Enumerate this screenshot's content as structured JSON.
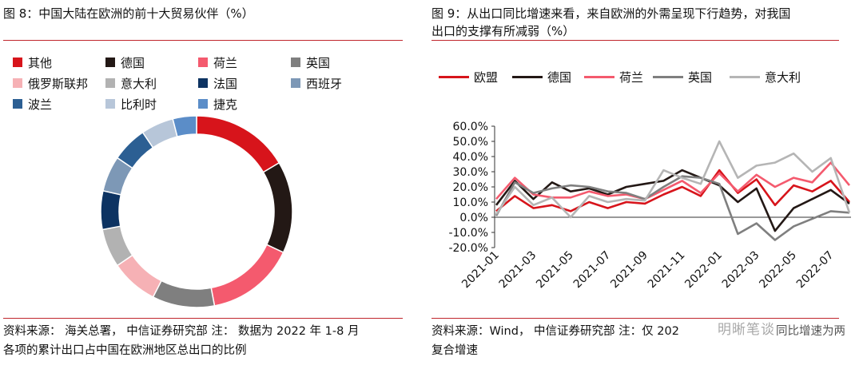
{
  "left": {
    "title": "图 8：中国大陆在欧洲的前十大贸易伙伴（%）",
    "source": "资料来源：  海关总署， 中信证券研究部  注： 数据为 2022 年 1-8 月",
    "source2": "各项的累计出口占中国在欧洲地区总出口的比例",
    "legend": [
      {
        "label": "其他",
        "color": "#d7141b"
      },
      {
        "label": "德国",
        "color": "#231815"
      },
      {
        "label": "荷兰",
        "color": "#f45a6e"
      },
      {
        "label": "英国",
        "color": "#7f7f7f"
      },
      {
        "label": "俄罗斯联邦",
        "color": "#f6b1b5"
      },
      {
        "label": "意大利",
        "color": "#b2b2b2"
      },
      {
        "label": "法国",
        "color": "#0d3362"
      },
      {
        "label": "西班牙",
        "color": "#7d98b6"
      },
      {
        "label": "波兰",
        "color": "#2c5f93"
      },
      {
        "label": "比利时",
        "color": "#b7c6d9"
      },
      {
        "label": "捷克",
        "color": "#5b8dc8"
      }
    ],
    "chart_data": {
      "type": "pie",
      "categories": [
        "其他",
        "德国",
        "荷兰",
        "英国",
        "俄罗斯联邦",
        "意大利",
        "法国",
        "西班牙",
        "波兰",
        "比利时",
        "捷克"
      ],
      "values": [
        16.5,
        15.5,
        15.0,
        10.5,
        8.0,
        6.5,
        6.5,
        6.0,
        6.0,
        5.5,
        4.0
      ]
    }
  },
  "right": {
    "title": "图 9：从出口同比增速来看，来自欧洲的外需呈现下行趋势，对我国\n出口的支撑有所减弱（%）",
    "source": "资料来源：Wind， 中信证券研究部  注：仅 202",
    "source_tail": "同比增速为两",
    "source2": "复合增速",
    "watermark": "明晰笔谈",
    "chart_data": {
      "type": "line",
      "x": [
        "2021-01",
        "2021-02",
        "2021-03",
        "2021-04",
        "2021-05",
        "2021-06",
        "2021-07",
        "2021-08",
        "2021-09",
        "2021-10",
        "2021-11",
        "2021-12",
        "2022-01",
        "2022-02",
        "2022-03",
        "2022-04",
        "2022-05",
        "2022-06",
        "2022-07",
        "2022-08"
      ],
      "xtick_labels": [
        "2021-01",
        "2021-03",
        "2021-05",
        "2021-07",
        "2021-09",
        "2021-11",
        "2022-01",
        "2022-03",
        "2022-05",
        "2022-07"
      ],
      "ytick_labels": [
        "60.0%",
        "50.0%",
        "40.0%",
        "30.0%",
        "20.0%",
        "10.0%",
        "0.0%",
        "-10.0%",
        "-20.0%"
      ],
      "ylim": [
        -20,
        60
      ],
      "series": [
        {
          "name": "欧盟",
          "color": "#d7141b",
          "values": [
            4,
            14,
            6,
            8,
            4,
            10,
            6,
            10,
            9,
            15,
            20,
            14,
            31,
            16,
            25,
            8,
            21,
            17,
            24,
            10
          ]
        },
        {
          "name": "德国",
          "color": "#231815",
          "values": [
            8,
            24,
            12,
            23,
            17,
            19,
            15,
            20,
            22,
            24,
            31,
            26,
            21,
            10,
            19,
            -9,
            6,
            12,
            18,
            9
          ]
        },
        {
          "name": "荷兰",
          "color": "#f45a6e",
          "values": [
            12,
            26,
            15,
            13,
            13,
            17,
            14,
            15,
            12,
            18,
            24,
            16,
            29,
            17,
            28,
            20,
            26,
            23,
            36,
            21
          ]
        },
        {
          "name": "英国",
          "color": "#7f7f7f",
          "values": [
            1,
            23,
            16,
            19,
            21,
            20,
            17,
            16,
            12,
            20,
            27,
            26,
            22,
            -11,
            -4,
            -15,
            -6,
            -1,
            4,
            3
          ]
        },
        {
          "name": "意大利",
          "color": "#b5b5b5",
          "values": [
            2,
            20,
            8,
            13,
            0,
            14,
            10,
            12,
            11,
            31,
            26,
            22,
            50,
            26,
            34,
            36,
            42,
            30,
            39,
            3
          ]
        }
      ]
    }
  }
}
